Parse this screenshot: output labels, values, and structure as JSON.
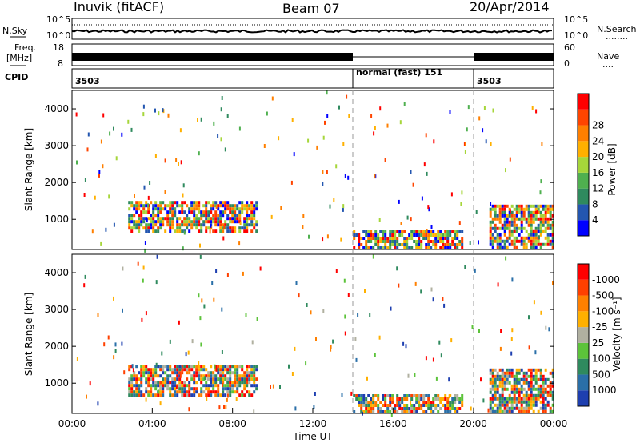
{
  "header": {
    "station": "Inuvik (fitACF)",
    "beam": "Beam 07",
    "date": "20/Apr/2014"
  },
  "top_panels": {
    "noise": {
      "left_label": "N.Sky",
      "right_label": "N.Search",
      "right_legend": "........",
      "left_ticks": [
        "10^5",
        "10^0"
      ],
      "right_ticks": [
        "10^5",
        "10^0"
      ]
    },
    "freq": {
      "left_label_1": "Freq.",
      "left_label_2": "[MHz]",
      "left_ticks": [
        "18",
        "8"
      ],
      "right_label": "Nave",
      "right_legend": "....",
      "right_ticks": [
        "60",
        "0"
      ]
    },
    "cpid": {
      "label": "CPID",
      "segments": [
        {
          "start_hour": 0,
          "text": "3503"
        },
        {
          "start_hour": 14,
          "text": "normal (fast) 151"
        },
        {
          "start_hour": 20,
          "text": "3503"
        }
      ]
    }
  },
  "chart_data": [
    {
      "type": "heatmap",
      "title": "",
      "xlabel": "",
      "ylabel": "Slant Range [km]",
      "x_range_hours": [
        0,
        24
      ],
      "ylim": [
        180,
        4500
      ],
      "yticks": [
        1000,
        2000,
        3000,
        4000
      ],
      "colorbar": {
        "label": "Power [dB]",
        "ticks": [
          4,
          8,
          12,
          16,
          20,
          24,
          28
        ],
        "colors": [
          "#0000ff",
          "#2356b0",
          "#2f8a5e",
          "#4fb04f",
          "#a6d63a",
          "#ffb000",
          "#ff7f00",
          "#ff4500",
          "#ff0000"
        ]
      },
      "regions": [
        {
          "x0": 2.8,
          "x1": 9.2,
          "y0": 650,
          "y1": 1500,
          "value_range": "4-28"
        },
        {
          "x0": 14.0,
          "x1": 19.5,
          "y0": 250,
          "y1": 700,
          "value_range": "20-28"
        },
        {
          "x0": 20.8,
          "x1": 24.0,
          "y0": 250,
          "y1": 1400,
          "value_range": "16-28"
        }
      ]
    },
    {
      "type": "heatmap",
      "title": "",
      "xlabel": "Time UT",
      "ylabel": "Slant Range [km]",
      "x_range_hours": [
        0,
        24
      ],
      "ylim": [
        180,
        4500
      ],
      "yticks": [
        1000,
        2000,
        3000,
        4000
      ],
      "xticks": [
        "00:00",
        "04:00",
        "08:00",
        "12:00",
        "16:00",
        "20:00",
        "00:00"
      ],
      "colorbar": {
        "label": "Velocity [m s⁻¹]",
        "ticks": [
          "1000",
          "500",
          "100",
          "25",
          "-25",
          "-100",
          "-500",
          "-1000"
        ],
        "colors": [
          "#1e3fb0",
          "#2a6fa8",
          "#2f8a5e",
          "#5cc33a",
          "#b0b0a0",
          "#ffb000",
          "#ff8000",
          "#ff4000",
          "#ff0000"
        ]
      },
      "regions": [
        {
          "x0": 2.8,
          "x1": 9.2,
          "y0": 650,
          "y1": 1500,
          "value_range": "-500 to 1000"
        },
        {
          "x0": 14.0,
          "x1": 19.5,
          "y0": 250,
          "y1": 700,
          "value_range": "-100 to 100"
        },
        {
          "x0": 20.8,
          "x1": 24.0,
          "y0": 250,
          "y1": 1400,
          "value_range": "-1000 to -25"
        }
      ]
    }
  ]
}
